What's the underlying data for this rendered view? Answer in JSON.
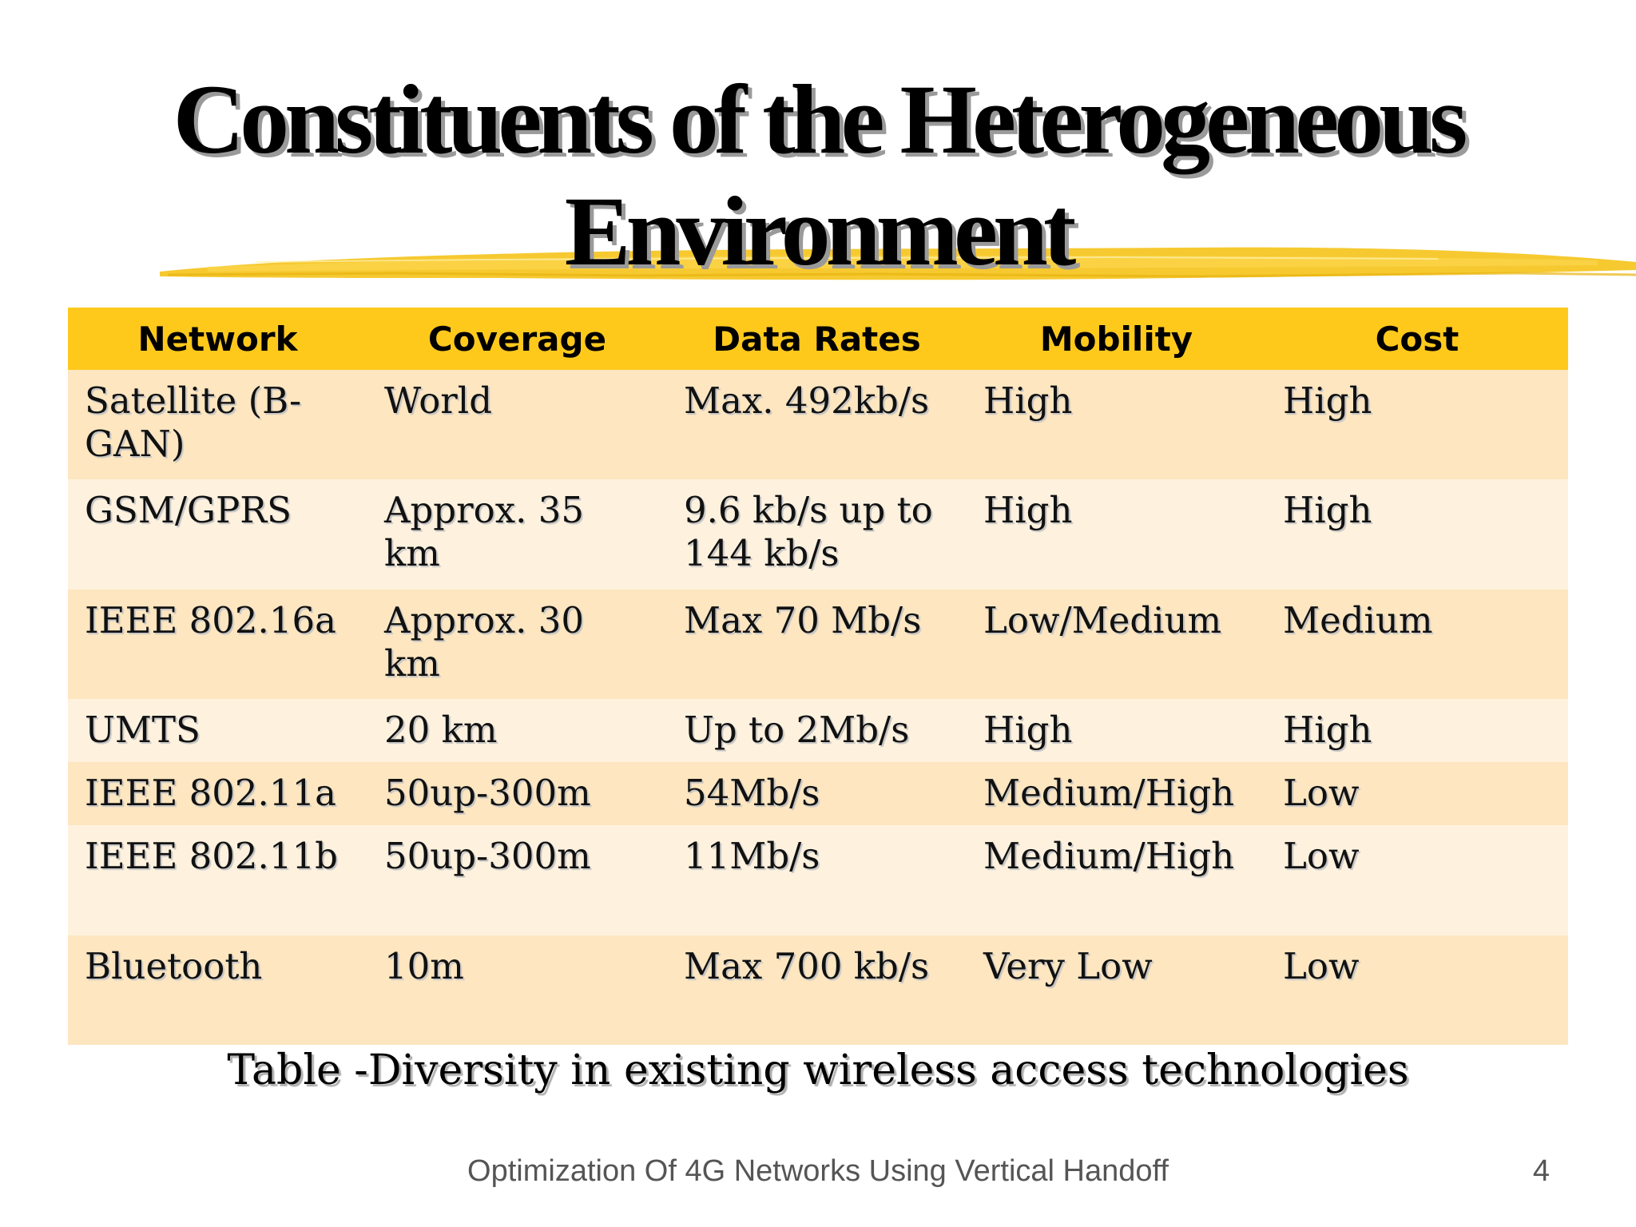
{
  "slide": {
    "title": "Constituents of the Heterogeneous Environment",
    "caption": "Table -Diversity in existing wireless access technologies",
    "footer": "Optimization Of 4G Networks Using Vertical Handoff",
    "page_number": "4"
  },
  "table": {
    "headers": [
      "Network",
      "Coverage",
      "Data Rates",
      "Mobility",
      "Cost"
    ],
    "rows": [
      [
        "Satellite (B-GAN)",
        "World",
        "Max. 492kb/s",
        "High",
        "High"
      ],
      [
        "GSM/GPRS",
        "Approx. 35 km",
        "9.6 kb/s up to 144 kb/s",
        "High",
        "High"
      ],
      [
        "IEEE 802.16a",
        "Approx. 30 km",
        "Max 70 Mb/s",
        "Low/Medium",
        "Medium"
      ],
      [
        "UMTS",
        "20 km",
        "Up to 2Mb/s",
        "High",
        "High"
      ],
      [
        "IEEE 802.11a",
        "50up-300m",
        "54Mb/s",
        "Medium/High",
        "Low"
      ],
      [
        "IEEE 802.11b",
        "50up-300m",
        "11Mb/s",
        "Medium/High",
        "Low"
      ],
      [
        "Bluetooth",
        "10m",
        "Max 700 kb/s",
        "Very Low",
        "Low"
      ]
    ]
  },
  "colors": {
    "header_fill": "#ffc91c",
    "row_fill_dark": "#fde6c0",
    "row_fill_light": "#fef2df",
    "brush_stroke": "#f5c31a"
  },
  "icons": {
    "title_underline": "yellow-brush-stroke"
  }
}
